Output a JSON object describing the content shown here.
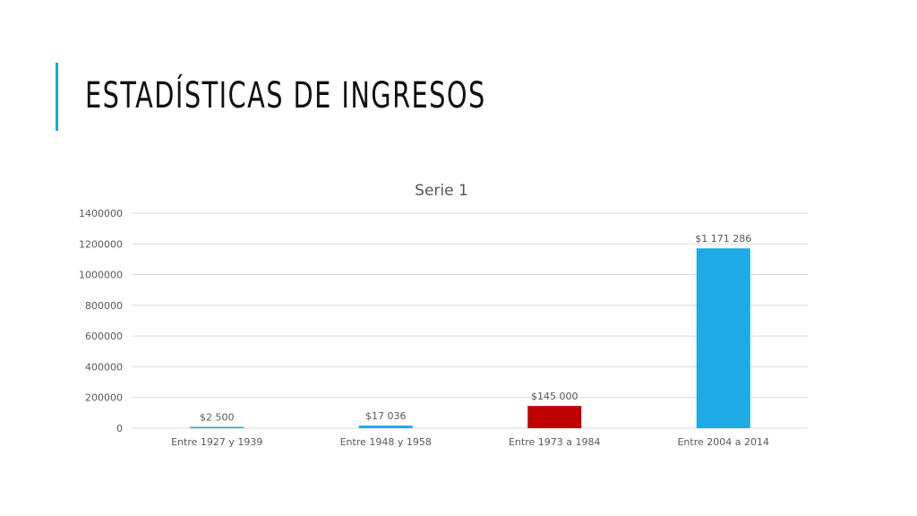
{
  "slide": {
    "title": "ESTADÍSTICAS DE INGRESOS"
  },
  "colors": {
    "accent": "#1fa7da",
    "bar_default": "#1eaae4",
    "bar_highlight": "#c00000",
    "gridline": "#d9d9d9",
    "axis_text": "#595959"
  },
  "chart_data": {
    "type": "bar",
    "title": "Serie 1",
    "xlabel": "",
    "ylabel": "",
    "categories": [
      "Entre 1927 y 1939",
      "Entre 1948 y 1958",
      "Entre 1973 a 1984",
      "Entre 2004 a 2014"
    ],
    "series": [
      {
        "values": [
          2500,
          17036,
          145000,
          1171286
        ],
        "data_labels": [
          "$2 500",
          "$17 036",
          "$145 000",
          "$1 171 286"
        ],
        "bar_colors": [
          "#1eaae4",
          "#1eaae4",
          "#c00000",
          "#1eaae4"
        ]
      }
    ],
    "ylim": [
      0,
      1400000
    ],
    "yticks": [
      0,
      200000,
      400000,
      600000,
      800000,
      1000000,
      1200000,
      1400000
    ],
    "ytick_labels": [
      "0",
      "200000",
      "400000",
      "600000",
      "800000",
      "1000000",
      "1200000",
      "1400000"
    ],
    "grid": true,
    "legend": "none"
  }
}
